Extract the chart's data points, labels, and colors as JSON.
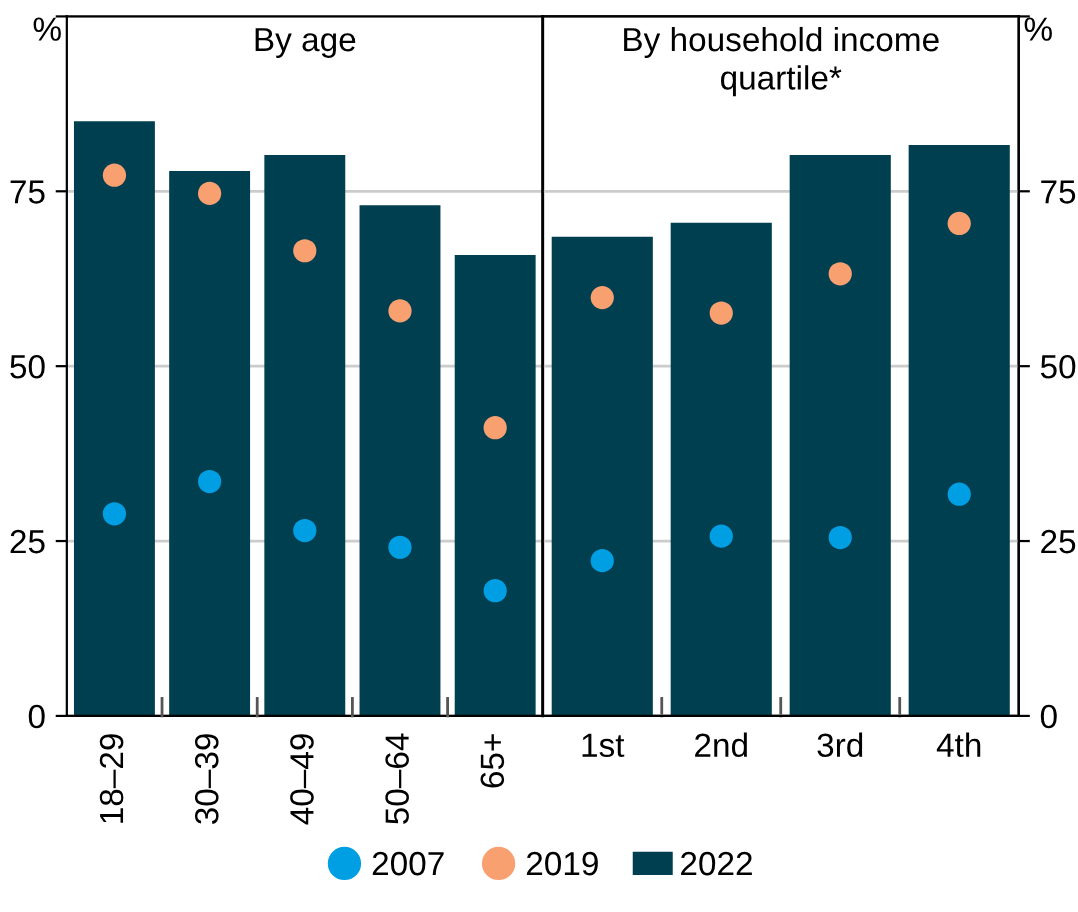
{
  "chart_data": [
    {
      "type": "bar",
      "title": "By age",
      "ylabel": "%",
      "categories": [
        "18–29",
        "30–39",
        "40–49",
        "50–64",
        "65+"
      ],
      "ylim": [
        0,
        100
      ],
      "yticks": [
        0,
        25,
        50,
        75,
        {
          "value": 100,
          "label": null
        }
      ],
      "grid": "y",
      "legend": "bottom",
      "marker": "circle",
      "series": [
        {
          "name": "2007",
          "type": "scatter",
          "color": "#009fe3",
          "values": [
            28.9,
            33.5,
            26.5,
            24.1,
            17.9
          ]
        },
        {
          "name": "2019",
          "type": "scatter",
          "color": "#f9a071",
          "values": [
            77.3,
            74.7,
            66.5,
            57.9,
            41.2
          ]
        },
        {
          "name": "2022",
          "color": "#003f50",
          "values": [
            85.0,
            77.9,
            80.2,
            73.0,
            65.9
          ]
        }
      ]
    },
    {
      "type": "bar",
      "title": "By household income quartile*",
      "y2label": "%",
      "categories": [
        "1st",
        "2nd",
        "3rd",
        "4th"
      ],
      "y2lim": [
        0,
        100
      ],
      "y2ticks": [
        0,
        25,
        50,
        75,
        {
          "value": 100,
          "label": null
        }
      ],
      "grid": "y",
      "marker": "circle",
      "series": [
        {
          "type": "scatter",
          "axis": "y2",
          "color": "#009fe3",
          "values": [
            22.2,
            25.7,
            25.5,
            31.7
          ]
        },
        {
          "type": "scatter",
          "axis": "y2",
          "color": "#f9a071",
          "values": [
            59.8,
            57.6,
            63.2,
            70.4
          ]
        },
        {
          "axis": "y2",
          "color": "#003f50",
          "values": [
            68.5,
            70.5,
            80.2,
            81.6
          ]
        }
      ]
    }
  ]
}
